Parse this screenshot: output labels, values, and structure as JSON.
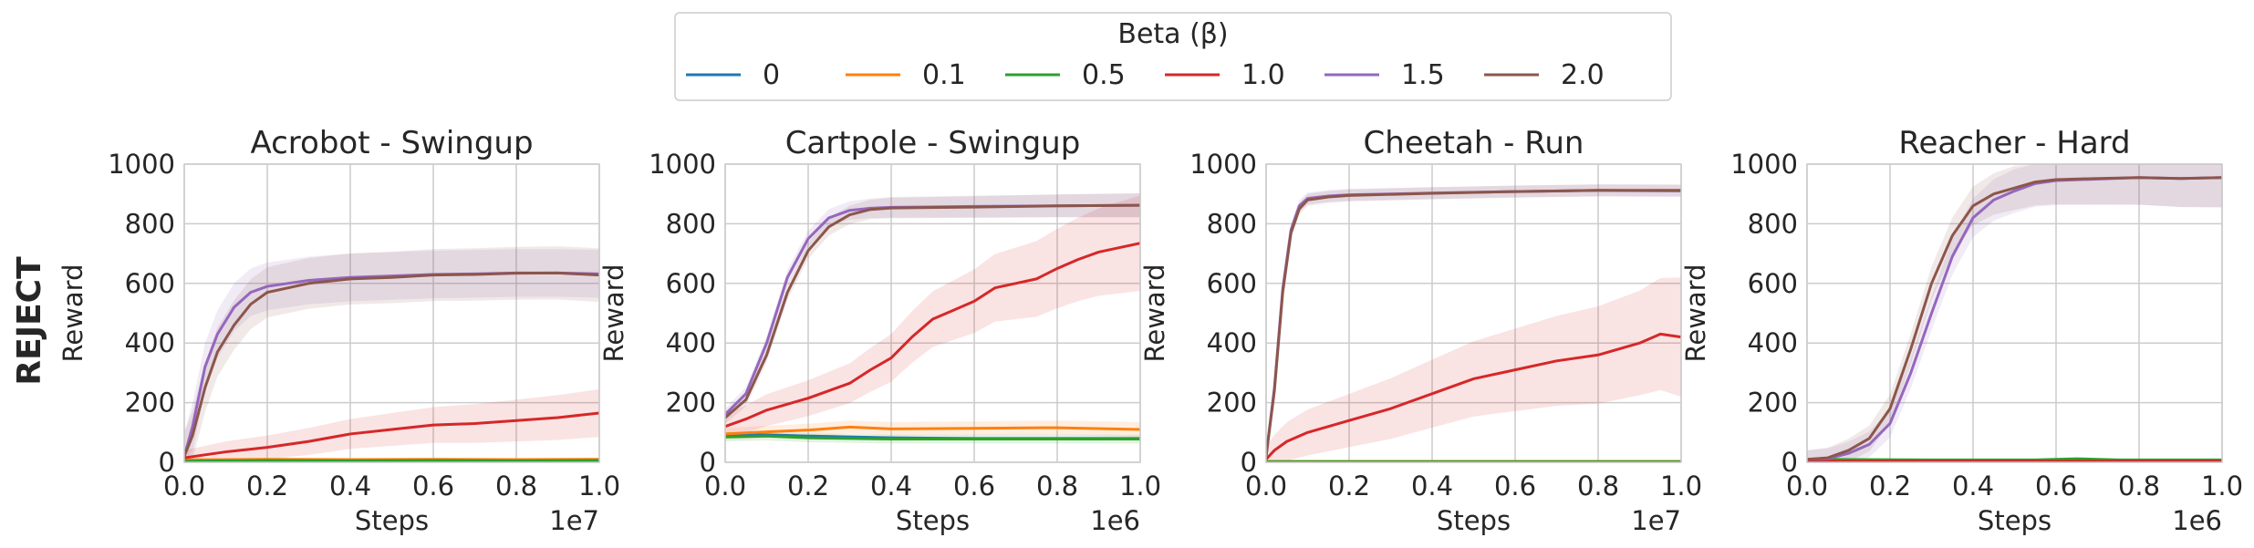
{
  "figure": {
    "row_label": "REJECT",
    "legend_title": "Beta (β)",
    "series_names": [
      "0",
      "0.1",
      "0.5",
      "1.0",
      "1.5",
      "2.0"
    ],
    "series_colors": [
      "#1f77b4",
      "#ff7f0e",
      "#2ca02c",
      "#d62728",
      "#9467bd",
      "#8c564b"
    ],
    "grid_color": "#cccccc",
    "axis_text_color": "#262626",
    "row_label_color": "#666666"
  },
  "chart_data": [
    {
      "type": "line",
      "title": "Acrobot - Swingup",
      "xlabel": "Steps",
      "ylabel": "Reward",
      "x_scale_label": "1e7",
      "xlim": [
        0.0,
        1.0
      ],
      "ylim": [
        0,
        1000
      ],
      "xticks": [
        "0.0",
        "0.2",
        "0.4",
        "0.6",
        "0.8",
        "1.0"
      ],
      "yticks": [
        "0",
        "200",
        "400",
        "600",
        "800",
        "1000"
      ],
      "grid": true,
      "series": [
        {
          "name": "0",
          "x": [
            0,
            0.2,
            0.4,
            0.6,
            0.8,
            1.0
          ],
          "values": [
            5,
            8,
            6,
            7,
            6,
            8
          ]
        },
        {
          "name": "0.1",
          "x": [
            0,
            0.2,
            0.4,
            0.6,
            0.8,
            1.0
          ],
          "values": [
            8,
            10,
            9,
            10,
            9,
            10
          ]
        },
        {
          "name": "0.5",
          "x": [
            0,
            0.2,
            0.4,
            0.6,
            0.8,
            1.0
          ],
          "values": [
            4,
            6,
            5,
            6,
            5,
            6
          ]
        },
        {
          "name": "1.0",
          "x": [
            0,
            0.05,
            0.1,
            0.2,
            0.3,
            0.4,
            0.5,
            0.6,
            0.7,
            0.8,
            0.9,
            1.0
          ],
          "values": [
            15,
            25,
            35,
            50,
            70,
            95,
            110,
            125,
            130,
            140,
            150,
            165
          ],
          "band": [
            25,
            80
          ]
        },
        {
          "name": "1.5",
          "x": [
            0,
            0.02,
            0.05,
            0.08,
            0.12,
            0.16,
            0.2,
            0.3,
            0.4,
            0.5,
            0.6,
            0.7,
            0.8,
            0.9,
            1.0
          ],
          "values": [
            20,
            120,
            320,
            430,
            520,
            570,
            590,
            610,
            620,
            625,
            630,
            632,
            635,
            635,
            632
          ],
          "band": [
            80,
            80
          ]
        },
        {
          "name": "2.0",
          "x": [
            0,
            0.02,
            0.05,
            0.08,
            0.12,
            0.16,
            0.2,
            0.3,
            0.4,
            0.5,
            0.6,
            0.7,
            0.8,
            0.9,
            1.0
          ],
          "values": [
            20,
            90,
            250,
            370,
            460,
            530,
            570,
            600,
            615,
            620,
            628,
            630,
            634,
            635,
            628
          ],
          "band": [
            80,
            90
          ]
        }
      ]
    },
    {
      "type": "line",
      "title": "Cartpole - Swingup",
      "xlabel": "Steps",
      "ylabel": "Reward",
      "x_scale_label": "1e6",
      "xlim": [
        0.0,
        1.0
      ],
      "ylim": [
        0,
        1000
      ],
      "xticks": [
        "0.0",
        "0.2",
        "0.4",
        "0.6",
        "0.8",
        "1.0"
      ],
      "yticks": [
        "0",
        "200",
        "400",
        "600",
        "800",
        "1000"
      ],
      "grid": true,
      "series": [
        {
          "name": "0",
          "x": [
            0,
            0.1,
            0.2,
            0.4,
            0.6,
            0.8,
            1.0
          ],
          "values": [
            90,
            92,
            88,
            82,
            80,
            80,
            80
          ]
        },
        {
          "name": "0.1",
          "x": [
            0,
            0.1,
            0.2,
            0.3,
            0.4,
            0.6,
            0.8,
            1.0
          ],
          "values": [
            95,
            102,
            108,
            118,
            112,
            114,
            116,
            110
          ],
          "band": [
            20,
            25
          ]
        },
        {
          "name": "0.5",
          "x": [
            0,
            0.1,
            0.2,
            0.4,
            0.6,
            0.8,
            1.0
          ],
          "values": [
            85,
            88,
            82,
            78,
            78,
            78,
            78
          ],
          "band": [
            15,
            15
          ]
        },
        {
          "name": "1.0",
          "x": [
            0,
            0.05,
            0.1,
            0.2,
            0.3,
            0.35,
            0.4,
            0.45,
            0.5,
            0.55,
            0.6,
            0.65,
            0.7,
            0.75,
            0.8,
            0.85,
            0.9,
            0.95,
            1.0
          ],
          "values": [
            120,
            145,
            175,
            215,
            265,
            310,
            350,
            420,
            480,
            510,
            540,
            585,
            600,
            615,
            650,
            680,
            705,
            720,
            735
          ],
          "band": [
            40,
            160
          ]
        },
        {
          "name": "1.5",
          "x": [
            0,
            0.05,
            0.1,
            0.15,
            0.2,
            0.25,
            0.3,
            0.35,
            0.4,
            0.6,
            0.8,
            1.0
          ],
          "values": [
            160,
            230,
            400,
            620,
            750,
            820,
            845,
            852,
            855,
            858,
            860,
            862
          ],
          "band": [
            20,
            40
          ]
        },
        {
          "name": "2.0",
          "x": [
            0,
            0.05,
            0.1,
            0.15,
            0.2,
            0.25,
            0.3,
            0.35,
            0.4,
            0.6,
            0.8,
            1.0
          ],
          "values": [
            150,
            210,
            360,
            570,
            710,
            790,
            830,
            848,
            853,
            856,
            860,
            862
          ],
          "band": [
            20,
            40
          ]
        }
      ]
    },
    {
      "type": "line",
      "title": "Cheetah - Run",
      "xlabel": "Steps",
      "ylabel": "Reward",
      "x_scale_label": "1e7",
      "xlim": [
        0.0,
        1.0
      ],
      "ylim": [
        0,
        1000
      ],
      "xticks": [
        "0.0",
        "0.2",
        "0.4",
        "0.6",
        "0.8",
        "1.0"
      ],
      "yticks": [
        "0",
        "200",
        "400",
        "600",
        "800",
        "1000"
      ],
      "grid": true,
      "series": [
        {
          "name": "0",
          "x": [
            0,
            1.0
          ],
          "values": [
            2,
            2
          ]
        },
        {
          "name": "0.1",
          "x": [
            0,
            1.0
          ],
          "values": [
            3,
            3
          ]
        },
        {
          "name": "0.5",
          "x": [
            0,
            1.0
          ],
          "values": [
            2,
            2
          ]
        },
        {
          "name": "1.0",
          "x": [
            0,
            0.02,
            0.05,
            0.1,
            0.2,
            0.3,
            0.4,
            0.5,
            0.6,
            0.7,
            0.8,
            0.9,
            0.95,
            1.0
          ],
          "values": [
            10,
            40,
            70,
            100,
            140,
            180,
            230,
            280,
            310,
            340,
            360,
            400,
            430,
            420
          ],
          "band": [
            40,
            200
          ]
        },
        {
          "name": "1.5",
          "x": [
            0,
            0.02,
            0.04,
            0.06,
            0.08,
            0.1,
            0.15,
            0.2,
            0.4,
            0.6,
            0.8,
            1.0
          ],
          "values": [
            20,
            250,
            580,
            780,
            860,
            885,
            893,
            897,
            903,
            908,
            912,
            910
          ],
          "band": [
            20,
            20
          ]
        },
        {
          "name": "2.0",
          "x": [
            0,
            0.02,
            0.04,
            0.06,
            0.08,
            0.1,
            0.15,
            0.2,
            0.4,
            0.6,
            0.8,
            1.0
          ],
          "values": [
            20,
            240,
            570,
            770,
            850,
            880,
            890,
            895,
            902,
            908,
            912,
            912
          ],
          "band": [
            20,
            20
          ]
        }
      ]
    },
    {
      "type": "line",
      "title": "Reacher - Hard",
      "xlabel": "Steps",
      "ylabel": "Reward",
      "x_scale_label": "1e6",
      "xlim": [
        0.0,
        1.0
      ],
      "ylim": [
        0,
        1000
      ],
      "xticks": [
        "0.0",
        "0.2",
        "0.4",
        "0.6",
        "0.8",
        "1.0"
      ],
      "yticks": [
        "0",
        "200",
        "400",
        "600",
        "800",
        "1000"
      ],
      "grid": true,
      "series": [
        {
          "name": "0",
          "x": [
            0,
            0.5,
            1.0
          ],
          "values": [
            5,
            5,
            5
          ]
        },
        {
          "name": "0.1",
          "x": [
            0,
            0.5,
            1.0
          ],
          "values": [
            6,
            6,
            6
          ]
        },
        {
          "name": "0.5",
          "x": [
            0,
            0.3,
            0.55,
            0.65,
            0.75,
            1.0
          ],
          "values": [
            10,
            8,
            8,
            12,
            8,
            8
          ]
        },
        {
          "name": "1.0",
          "x": [
            0,
            0.5,
            1.0
          ],
          "values": [
            4,
            4,
            4
          ]
        },
        {
          "name": "1.5",
          "x": [
            0,
            0.05,
            0.1,
            0.15,
            0.2,
            0.25,
            0.3,
            0.35,
            0.4,
            0.45,
            0.5,
            0.55,
            0.6,
            0.7,
            0.8,
            0.9,
            1.0
          ],
          "values": [
            10,
            12,
            30,
            60,
            130,
            300,
            500,
            690,
            820,
            880,
            910,
            935,
            945,
            950,
            955,
            952,
            955
          ],
          "band": [
            30,
            100
          ]
        },
        {
          "name": "2.0",
          "x": [
            0,
            0.05,
            0.1,
            0.15,
            0.2,
            0.25,
            0.3,
            0.35,
            0.4,
            0.45,
            0.5,
            0.55,
            0.6,
            0.7,
            0.8,
            0.9,
            1.0
          ],
          "values": [
            10,
            15,
            40,
            80,
            180,
            380,
            600,
            760,
            860,
            900,
            920,
            940,
            948,
            952,
            955,
            952,
            955
          ],
          "band": [
            30,
            100
          ]
        }
      ]
    }
  ]
}
